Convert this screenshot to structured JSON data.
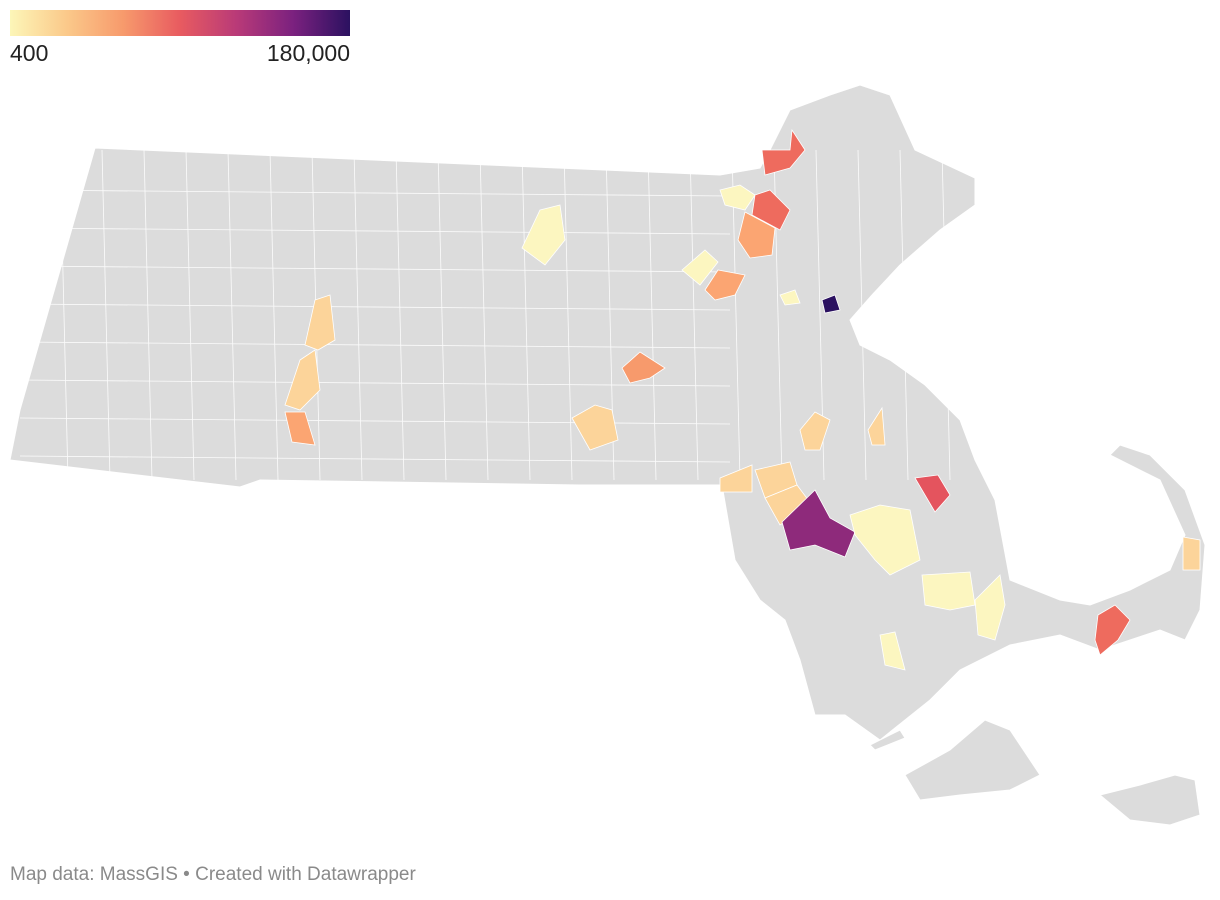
{
  "legend": {
    "min_label": "400",
    "max_label": "180,000",
    "colors": [
      "#fcf6b8",
      "#fbc98a",
      "#f79a6c",
      "#e85b60",
      "#b93a78",
      "#7b217f",
      "#2b1160"
    ]
  },
  "map": {
    "base_color": "#dcdcdc",
    "border_color": "#ffffff",
    "highlighted_regions": [
      {
        "color": "#ee6b5e"
      },
      {
        "color": "#fcf6c0"
      },
      {
        "color": "#ee6b5e"
      },
      {
        "color": "#fba572"
      },
      {
        "color": "#fcf6c0"
      },
      {
        "color": "#fba572"
      },
      {
        "color": "#fcf6c0"
      },
      {
        "color": "#2b1160"
      },
      {
        "color": "#fcf6c0"
      },
      {
        "color": "#fcd49a"
      },
      {
        "color": "#fcd49a"
      },
      {
        "color": "#fba572"
      },
      {
        "color": "#f79a6c"
      },
      {
        "color": "#fcd49a"
      },
      {
        "color": "#fcd49a"
      },
      {
        "color": "#fcd49a"
      },
      {
        "color": "#fcd49a"
      },
      {
        "color": "#fcd49a"
      },
      {
        "color": "#fcd49a"
      },
      {
        "color": "#8e2a7b"
      },
      {
        "color": "#fcf6c0"
      },
      {
        "color": "#e4545e"
      },
      {
        "color": "#fcf6c0"
      },
      {
        "color": "#fcf6c0"
      },
      {
        "color": "#fcf6c0"
      },
      {
        "color": "#fcd49a"
      },
      {
        "color": "#ee6b5e"
      }
    ]
  },
  "footer": {
    "text": "Map data: MassGIS • Created with Datawrapper"
  }
}
